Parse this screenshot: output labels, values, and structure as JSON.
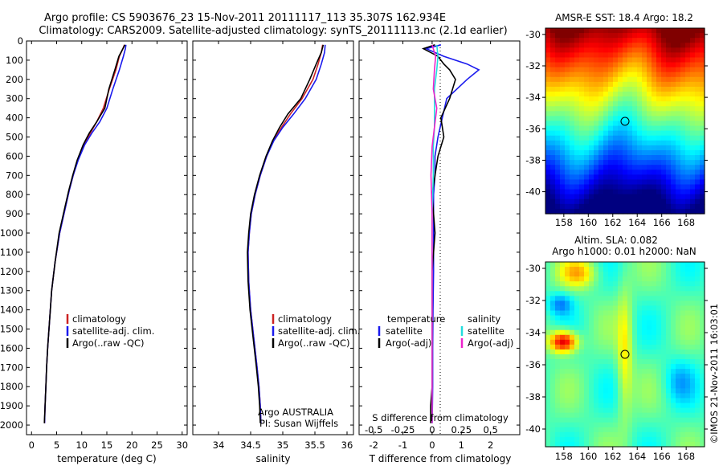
{
  "header": {
    "line1": "Argo profile: CS 5903676_23 15-Nov-2011 20111117_113 35.307S 162.934E",
    "line2": "Climatology: CARS2009. Satellite-adjusted climatology: synTS_20111113.nc (2.1d earlier)"
  },
  "colors": {
    "climatology": "#cc2222",
    "satellite": "#1a1aee",
    "argo": "#000000",
    "sal_satellite": "#22dddd",
    "sal_argo": "#ee22cc"
  },
  "chart_data": [
    {
      "type": "line",
      "panel": "temperature",
      "xlabel": "temperature (deg C)",
      "ylabel": "",
      "xlim": [
        -1,
        31
      ],
      "ylim": [
        2050,
        0
      ],
      "xticks": [
        0,
        5,
        10,
        15,
        20,
        25,
        30
      ],
      "yticks": [
        0,
        100,
        200,
        300,
        400,
        500,
        600,
        700,
        800,
        900,
        1000,
        1100,
        1200,
        1300,
        1400,
        1500,
        1600,
        1700,
        1800,
        1900,
        2000
      ],
      "legend": [
        "climatology",
        "satellite-adj. clim.",
        "Argo(..raw -QC)"
      ],
      "series": [
        {
          "name": "climatology",
          "color_key": "climatology",
          "x": [
            18.5,
            18.2,
            17.5,
            16.8,
            15.5,
            14.3,
            13.0,
            11.7,
            10.4,
            9.2,
            8.3,
            7.5,
            6.8,
            5.6,
            4.7,
            4.0,
            3.6,
            3.2,
            3.0,
            2.85,
            2.7,
            2.6
          ],
          "y": [
            20,
            40,
            80,
            150,
            250,
            350,
            420,
            480,
            540,
            620,
            700,
            780,
            860,
            1000,
            1150,
            1300,
            1450,
            1600,
            1700,
            1800,
            1900,
            1990
          ]
        },
        {
          "name": "satellite-adj. clim.",
          "color_key": "satellite",
          "x": [
            18.8,
            18.7,
            18.3,
            17.5,
            16.2,
            15.0,
            13.6,
            12.0,
            10.6,
            9.3,
            8.3,
            7.5,
            6.8,
            5.6,
            4.7,
            4.0,
            3.6,
            3.2,
            3.0,
            2.85,
            2.7,
            2.6
          ],
          "y": [
            20,
            40,
            80,
            150,
            250,
            350,
            420,
            480,
            540,
            620,
            700,
            780,
            860,
            1000,
            1150,
            1300,
            1450,
            1600,
            1700,
            1800,
            1900,
            1990
          ]
        },
        {
          "name": "Argo(..raw -QC)",
          "color_key": "argo",
          "x": [
            18.6,
            18.2,
            17.4,
            16.6,
            15.4,
            14.6,
            13.0,
            11.5,
            10.3,
            9.1,
            8.2,
            7.4,
            6.7,
            5.5,
            4.7,
            4.0,
            3.6,
            3.2,
            3.0,
            2.85,
            2.7,
            2.55
          ],
          "y": [
            20,
            40,
            80,
            150,
            250,
            350,
            420,
            480,
            540,
            620,
            700,
            780,
            860,
            1000,
            1150,
            1300,
            1450,
            1600,
            1700,
            1800,
            1900,
            1990
          ]
        }
      ]
    },
    {
      "type": "line",
      "panel": "salinity",
      "xlabel": "salinity",
      "xlim": [
        33.6,
        36.1
      ],
      "ylim": [
        2050,
        0
      ],
      "xticks": [
        34,
        34.5,
        35,
        35.5,
        36
      ],
      "legend": [
        "climatology",
        "satellite-adj. clim.",
        "Argo(..raw -QC)"
      ],
      "annotation": {
        "line1": "Argo AUSTRALIA",
        "line2": "PI: Susan Wijffels"
      },
      "series": [
        {
          "name": "climatology",
          "color_key": "climatology",
          "x": [
            35.62,
            35.6,
            35.55,
            35.47,
            35.3,
            35.12,
            34.98,
            34.85,
            34.75,
            34.65,
            34.57,
            34.51,
            34.48,
            34.46,
            34.47,
            34.5,
            34.55,
            34.6,
            34.63,
            34.65,
            34.66
          ],
          "y": [
            20,
            60,
            120,
            200,
            300,
            380,
            450,
            520,
            600,
            700,
            800,
            900,
            1000,
            1100,
            1250,
            1400,
            1550,
            1700,
            1800,
            1900,
            1990
          ]
        },
        {
          "name": "satellite-adj. clim.",
          "color_key": "satellite",
          "x": [
            35.66,
            35.65,
            35.6,
            35.52,
            35.35,
            35.17,
            35.0,
            34.86,
            34.75,
            34.65,
            34.57,
            34.51,
            34.48,
            34.46,
            34.47,
            34.5,
            34.55,
            34.6,
            34.63,
            34.65,
            34.66
          ],
          "y": [
            20,
            60,
            120,
            200,
            300,
            380,
            450,
            520,
            600,
            700,
            800,
            900,
            1000,
            1100,
            1250,
            1400,
            1550,
            1700,
            1800,
            1900,
            1990
          ]
        },
        {
          "name": "Argo(..raw -QC)",
          "color_key": "argo",
          "x": [
            35.63,
            35.6,
            35.52,
            35.42,
            35.28,
            35.08,
            34.95,
            34.84,
            34.74,
            34.64,
            34.56,
            34.5,
            34.47,
            34.45,
            34.46,
            34.49,
            34.54,
            34.59,
            34.62,
            34.64,
            34.65
          ],
          "y": [
            20,
            60,
            120,
            200,
            300,
            380,
            450,
            520,
            600,
            700,
            800,
            900,
            1000,
            1100,
            1250,
            1400,
            1550,
            1700,
            1800,
            1900,
            1990
          ]
        }
      ]
    },
    {
      "type": "line",
      "panel": "difference",
      "xlabel": "T difference from climatology",
      "x2label": "S difference from climatology",
      "xlim": [
        -2.5,
        3.0
      ],
      "x2lim": [
        -0.625,
        0.75
      ],
      "ylim": [
        2050,
        0
      ],
      "xticks": [
        -2,
        -1,
        0,
        1,
        2
      ],
      "x2ticks": [
        -0.5,
        -0.25,
        0,
        0.25,
        0.5
      ],
      "legend_left_title": "temperature",
      "legend_right_title": "salinity",
      "legend": [
        "satellite",
        "Argo(-adj)",
        "satellite",
        "Argo(-adj)"
      ],
      "series": [
        {
          "name": "temperature satellite",
          "color_key": "satellite",
          "x": [
            0.3,
            -0.2,
            0.4,
            1.2,
            1.6,
            1.2,
            0.5,
            0.35,
            0.2,
            0.1,
            0.1,
            0.05,
            0.05,
            0.05,
            0.03,
            0.02,
            0.02,
            0.01,
            0.0
          ],
          "y": [
            20,
            40,
            80,
            120,
            150,
            200,
            300,
            400,
            500,
            600,
            700,
            800,
            1000,
            1200,
            1400,
            1600,
            1800,
            1900,
            1990
          ]
        },
        {
          "name": "temperature Argo(-adj)",
          "color_key": "argo",
          "x": [
            0.1,
            -0.3,
            0.2,
            0.4,
            0.6,
            0.8,
            0.6,
            0.3,
            0.4,
            0.2,
            0.1,
            0.0,
            0.1,
            0.0,
            0.0,
            0.0,
            0.0,
            -0.05,
            -0.05
          ],
          "y": [
            20,
            40,
            80,
            120,
            150,
            200,
            300,
            400,
            500,
            600,
            700,
            800,
            1000,
            1200,
            1400,
            1600,
            1800,
            1900,
            1990
          ]
        },
        {
          "name": "salinity satellite",
          "color_key": "sal_satellite",
          "x": [
            0.04,
            0.05,
            0.04,
            0.02,
            0.02,
            0.02,
            0.01,
            0.01,
            0.0,
            0.0,
            0.0,
            0.0,
            0.0,
            0.0
          ],
          "y": [
            20,
            80,
            150,
            250,
            350,
            450,
            550,
            700,
            900,
            1100,
            1400,
            1700,
            1900,
            1990
          ]
        },
        {
          "name": "salinity Argo(-adj)",
          "color_key": "sal_argo",
          "x": [
            0.0,
            0.03,
            0.02,
            0.01,
            0.04,
            0.02,
            0.0,
            -0.01,
            0.0,
            0.0,
            0.0,
            0.0,
            0.0,
            0.0
          ],
          "y": [
            20,
            80,
            150,
            250,
            350,
            450,
            550,
            700,
            900,
            1100,
            1400,
            1700,
            1900,
            1990
          ]
        }
      ]
    },
    {
      "type": "heatmap",
      "panel": "sst_map",
      "title": "AMSR-E SST: 18.4  Argo: 18.2",
      "xlim": [
        156.5,
        169.5
      ],
      "ylim": [
        -41.4,
        -29.6
      ],
      "xticks": [
        158,
        160,
        162,
        164,
        166,
        168
      ],
      "yticks": [
        -30,
        -32,
        -34,
        -36,
        -38,
        -40
      ],
      "marker": {
        "lon": 162.934,
        "lat": -35.307
      }
    },
    {
      "type": "heatmap",
      "panel": "sla_map",
      "title_line1": "Altim. SLA: 0.082",
      "title_line2": "Argo h1000: 0.01 h2000: NaN",
      "xlim": [
        156.5,
        169.5
      ],
      "ylim": [
        -41.1,
        -29.6
      ],
      "xticks": [
        158,
        160,
        162,
        164,
        166,
        168
      ],
      "yticks": [
        -30,
        -32,
        -34,
        -36,
        -38,
        -40
      ],
      "marker": {
        "lon": 162.934,
        "lat": -35.307
      }
    }
  ],
  "credit": "©IMOS 21-Nov-2011 16:03:01"
}
